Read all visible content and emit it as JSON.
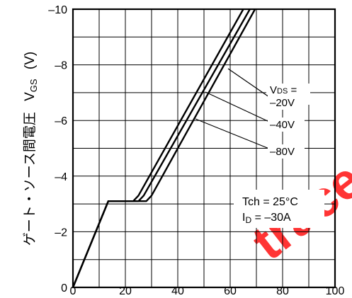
{
  "chart_data": {
    "type": "line",
    "title": "",
    "xlabel": "",
    "ylabel": "ゲート・ソース間電圧",
    "ylabel_symbol": "V",
    "ylabel_symbol_sub": "GS",
    "ylabel_unit": "(V)",
    "xlim": [
      0,
      100
    ],
    "ylim": [
      0,
      -10
    ],
    "x_ticks": [
      {
        "value": 0,
        "label": "0"
      },
      {
        "value": 20,
        "label": "20"
      },
      {
        "value": 40,
        "label": "40"
      },
      {
        "value": 60,
        "label": "60"
      },
      {
        "value": 80,
        "label": "80"
      },
      {
        "value": 100,
        "label": "100"
      }
    ],
    "y_ticks": [
      {
        "value": 0,
        "label": "0"
      },
      {
        "value": -2,
        "label": "–2"
      },
      {
        "value": -4,
        "label": "–4"
      },
      {
        "value": -6,
        "label": "–6"
      },
      {
        "value": -8,
        "label": "–8"
      },
      {
        "value": -10,
        "label": "–10"
      }
    ],
    "grid": true,
    "series": [
      {
        "name": "–20V",
        "points": [
          [
            0,
            0
          ],
          [
            13.5,
            -3.1
          ],
          [
            23,
            -3.1
          ],
          [
            25,
            -3.3
          ],
          [
            65,
            -10
          ]
        ]
      },
      {
        "name": "–40V",
        "points": [
          [
            0,
            0
          ],
          [
            13.5,
            -3.1
          ],
          [
            25,
            -3.1
          ],
          [
            27,
            -3.3
          ],
          [
            67.5,
            -10
          ]
        ]
      },
      {
        "name": "–80V",
        "points": [
          [
            0,
            0
          ],
          [
            13.5,
            -3.1
          ],
          [
            28,
            -3.1
          ],
          [
            30,
            -3.3
          ],
          [
            69.5,
            -10
          ]
        ]
      }
    ],
    "legend": {
      "title_main": "V",
      "title_sub": "DS",
      "title_suffix": " ="
    },
    "annotation": {
      "line1": "Tch = 25°C",
      "line2_main": "I",
      "line2_sub": "D",
      "line2_suffix": " = –30A"
    },
    "watermark": "trace"
  }
}
